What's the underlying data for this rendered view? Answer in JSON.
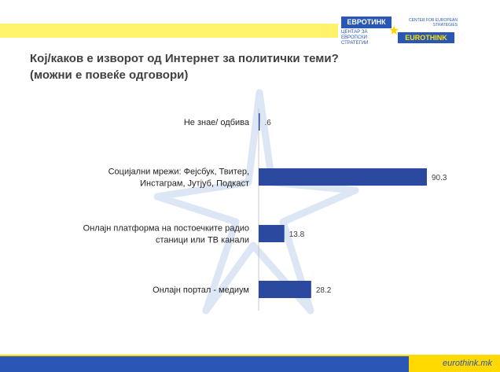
{
  "header": {
    "logo_mk_title": "ЕВРОТИНК",
    "logo_mk_sub": "ЦЕНТАР ЗА ЕВРОПСКИ СТРАТЕГИИ",
    "logo_en_title": "EUROTHINK",
    "logo_en_sub": "CENTER FOR EUROPEAN STRATEGIES",
    "title_line1": "Кој/каков е изворот од Интернет за политички теми?",
    "title_line2": "(можни е повеќе одговори)"
  },
  "footer": {
    "site": "eurothink.mk"
  },
  "colors": {
    "bar": "#2b4a9f",
    "accent_yellow": "#ffd900",
    "brand_blue": "#2a56b5",
    "title": "#404040"
  },
  "chart_data": {
    "type": "bar",
    "orientation": "horizontal",
    "title": "",
    "xlabel": "",
    "ylabel": "",
    "xlim": [
      0,
      100
    ],
    "grid": false,
    "legend": "none",
    "categories": [
      [
        "Не знае/ одбива"
      ],
      [
        "Социјални мрежи: Фејсбук, Твитер,",
        "Инстаграм, Јутјуб, Подкаст"
      ],
      [
        "Онлајн платформа на постоечките радио",
        "станици или ТВ канали"
      ],
      [
        "Онлајн портал - медиум"
      ]
    ],
    "values": [
      0.6,
      90.3,
      13.8,
      28.2
    ],
    "value_labels": [
      ".6",
      "90.3",
      "13.8",
      "28.2"
    ]
  }
}
